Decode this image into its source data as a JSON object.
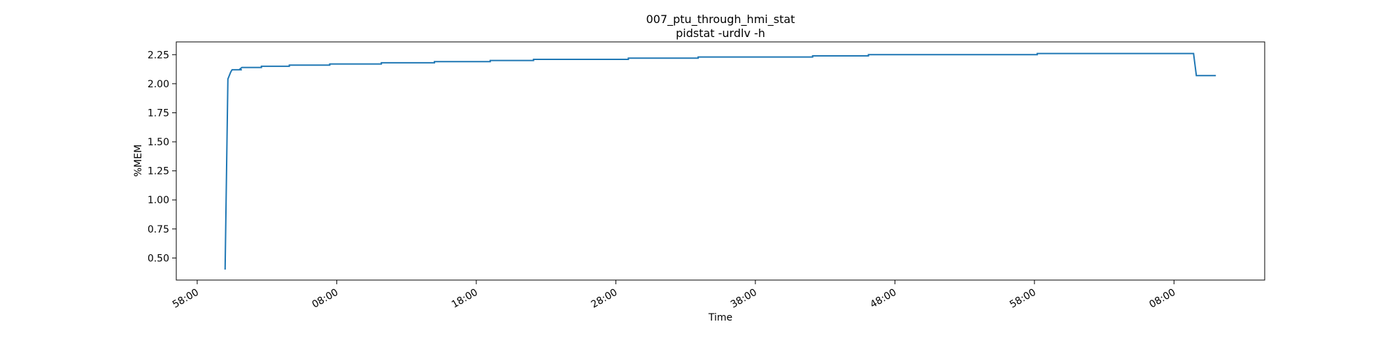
{
  "chart_data": {
    "type": "line",
    "title": "007_ptu_through_hmi_stat",
    "subtitle": "pidstat -urdlv -h",
    "xlabel": "Time",
    "ylabel": "%MEM",
    "xlim": [
      -1.5,
      76.5
    ],
    "ylim": [
      0.31,
      2.36
    ],
    "x_ticks": [
      {
        "value": 0,
        "label": "58:00"
      },
      {
        "value": 10,
        "label": "08:00"
      },
      {
        "value": 20,
        "label": "18:00"
      },
      {
        "value": 30,
        "label": "28:00"
      },
      {
        "value": 40,
        "label": "38:00"
      },
      {
        "value": 50,
        "label": "48:00"
      },
      {
        "value": 60,
        "label": "58:00"
      },
      {
        "value": 70,
        "label": "08:00"
      }
    ],
    "y_ticks": [
      {
        "value": 0.5,
        "label": "0.50"
      },
      {
        "value": 0.75,
        "label": "0.75"
      },
      {
        "value": 1.0,
        "label": "1.00"
      },
      {
        "value": 1.25,
        "label": "1.25"
      },
      {
        "value": 1.5,
        "label": "1.50"
      },
      {
        "value": 1.75,
        "label": "1.75"
      },
      {
        "value": 2.0,
        "label": "2.00"
      },
      {
        "value": 2.25,
        "label": "2.25"
      }
    ],
    "grid": false,
    "series": [
      {
        "color": "#1f77b4",
        "step": true,
        "points": [
          [
            2.0,
            0.4
          ],
          [
            2.2,
            2.04
          ],
          [
            2.4,
            2.1
          ],
          [
            2.5,
            2.12
          ],
          [
            3.0,
            2.12
          ],
          [
            3.2,
            2.12
          ],
          [
            3.0,
            2.12
          ],
          [
            3.2,
            2.14
          ],
          [
            4.6,
            2.14
          ],
          [
            4.6,
            2.15
          ],
          [
            6.6,
            2.15
          ],
          [
            6.6,
            2.16
          ],
          [
            9.5,
            2.16
          ],
          [
            9.5,
            2.17
          ],
          [
            13.2,
            2.17
          ],
          [
            13.2,
            2.18
          ],
          [
            17.0,
            2.18
          ],
          [
            17.0,
            2.19
          ],
          [
            21.0,
            2.19
          ],
          [
            21.0,
            2.2
          ],
          [
            24.1,
            2.2
          ],
          [
            24.1,
            2.21
          ],
          [
            30.9,
            2.21
          ],
          [
            30.9,
            2.22
          ],
          [
            35.9,
            2.22
          ],
          [
            35.9,
            2.23
          ],
          [
            44.1,
            2.23
          ],
          [
            44.1,
            2.24
          ],
          [
            48.1,
            2.24
          ],
          [
            48.1,
            2.25
          ],
          [
            60.2,
            2.25
          ],
          [
            60.2,
            2.26
          ],
          [
            71.4,
            2.26
          ],
          [
            71.6,
            2.07
          ],
          [
            73.0,
            2.07
          ]
        ]
      }
    ]
  }
}
